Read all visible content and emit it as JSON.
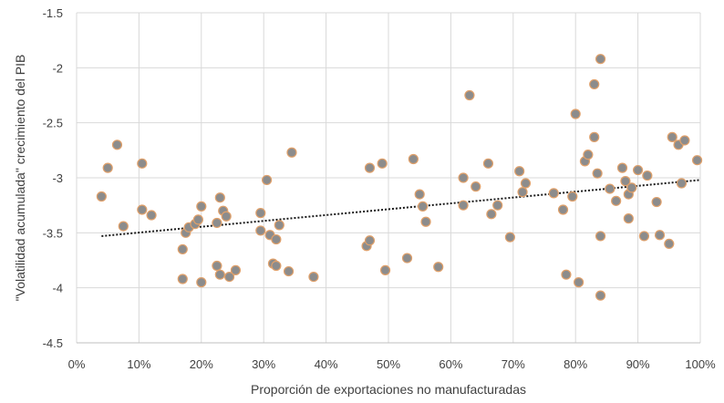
{
  "chart_data": {
    "type": "scatter",
    "title": "",
    "xlabel": "Proporción de exportaciones no manufacturadas",
    "ylabel": "\"Volatilidad acumulada\"  crecimiento del PIB",
    "xlim": [
      0,
      1
    ],
    "ylim": [
      -4.5,
      -1.5
    ],
    "x_ticks": [
      "0%",
      "10%",
      "20%",
      "30%",
      "40%",
      "50%",
      "60%",
      "70%",
      "80%",
      "90%",
      "100%"
    ],
    "y_ticks": [
      "-1.5",
      "-2",
      "-2.5",
      "-3",
      "-3.5",
      "-4",
      "-4.5"
    ],
    "grid": true,
    "legend": "none",
    "marker_fill": "#8c8c8c",
    "marker_edge": "#e0a06a",
    "trendline": {
      "style": "dotted",
      "color": "#1a1a1a",
      "x": [
        0.04,
        1.0
      ],
      "y": [
        -3.53,
        -3.02
      ]
    },
    "points": [
      {
        "x": 0.04,
        "y": -3.17
      },
      {
        "x": 0.05,
        "y": -2.91
      },
      {
        "x": 0.065,
        "y": -2.7
      },
      {
        "x": 0.075,
        "y": -3.44
      },
      {
        "x": 0.105,
        "y": -2.87
      },
      {
        "x": 0.105,
        "y": -3.29
      },
      {
        "x": 0.12,
        "y": -3.34
      },
      {
        "x": 0.17,
        "y": -3.65
      },
      {
        "x": 0.17,
        "y": -3.92
      },
      {
        "x": 0.175,
        "y": -3.5
      },
      {
        "x": 0.18,
        "y": -3.45
      },
      {
        "x": 0.19,
        "y": -3.42
      },
      {
        "x": 0.195,
        "y": -3.38
      },
      {
        "x": 0.2,
        "y": -3.26
      },
      {
        "x": 0.2,
        "y": -3.95
      },
      {
        "x": 0.225,
        "y": -3.41
      },
      {
        "x": 0.225,
        "y": -3.8
      },
      {
        "x": 0.23,
        "y": -3.18
      },
      {
        "x": 0.23,
        "y": -3.88
      },
      {
        "x": 0.235,
        "y": -3.3
      },
      {
        "x": 0.24,
        "y": -3.35
      },
      {
        "x": 0.245,
        "y": -3.9
      },
      {
        "x": 0.255,
        "y": -3.84
      },
      {
        "x": 0.295,
        "y": -3.48
      },
      {
        "x": 0.295,
        "y": -3.32
      },
      {
        "x": 0.305,
        "y": -3.02
      },
      {
        "x": 0.31,
        "y": -3.52
      },
      {
        "x": 0.315,
        "y": -3.78
      },
      {
        "x": 0.32,
        "y": -3.56
      },
      {
        "x": 0.32,
        "y": -3.8
      },
      {
        "x": 0.325,
        "y": -3.43
      },
      {
        "x": 0.34,
        "y": -3.85
      },
      {
        "x": 0.345,
        "y": -2.77
      },
      {
        "x": 0.38,
        "y": -3.9
      },
      {
        "x": 0.465,
        "y": -3.62
      },
      {
        "x": 0.47,
        "y": -3.57
      },
      {
        "x": 0.47,
        "y": -2.91
      },
      {
        "x": 0.49,
        "y": -2.87
      },
      {
        "x": 0.495,
        "y": -3.84
      },
      {
        "x": 0.53,
        "y": -3.73
      },
      {
        "x": 0.54,
        "y": -2.83
      },
      {
        "x": 0.55,
        "y": -3.15
      },
      {
        "x": 0.555,
        "y": -3.26
      },
      {
        "x": 0.56,
        "y": -3.4
      },
      {
        "x": 0.58,
        "y": -3.81
      },
      {
        "x": 0.62,
        "y": -3.0
      },
      {
        "x": 0.62,
        "y": -3.25
      },
      {
        "x": 0.63,
        "y": -2.25
      },
      {
        "x": 0.64,
        "y": -3.08
      },
      {
        "x": 0.66,
        "y": -2.87
      },
      {
        "x": 0.665,
        "y": -3.33
      },
      {
        "x": 0.675,
        "y": -3.25
      },
      {
        "x": 0.695,
        "y": -3.54
      },
      {
        "x": 0.71,
        "y": -2.94
      },
      {
        "x": 0.715,
        "y": -3.13
      },
      {
        "x": 0.72,
        "y": -3.05
      },
      {
        "x": 0.765,
        "y": -3.14
      },
      {
        "x": 0.78,
        "y": -3.29
      },
      {
        "x": 0.785,
        "y": -3.88
      },
      {
        "x": 0.795,
        "y": -3.17
      },
      {
        "x": 0.8,
        "y": -2.42
      },
      {
        "x": 0.805,
        "y": -3.95
      },
      {
        "x": 0.815,
        "y": -2.85
      },
      {
        "x": 0.82,
        "y": -2.79
      },
      {
        "x": 0.83,
        "y": -2.15
      },
      {
        "x": 0.83,
        "y": -2.63
      },
      {
        "x": 0.835,
        "y": -2.96
      },
      {
        "x": 0.84,
        "y": -1.92
      },
      {
        "x": 0.84,
        "y": -3.53
      },
      {
        "x": 0.84,
        "y": -4.07
      },
      {
        "x": 0.855,
        "y": -3.1
      },
      {
        "x": 0.865,
        "y": -3.21
      },
      {
        "x": 0.875,
        "y": -2.91
      },
      {
        "x": 0.88,
        "y": -3.03
      },
      {
        "x": 0.885,
        "y": -3.37
      },
      {
        "x": 0.885,
        "y": -3.15
      },
      {
        "x": 0.89,
        "y": -3.09
      },
      {
        "x": 0.9,
        "y": -2.93
      },
      {
        "x": 0.91,
        "y": -3.53
      },
      {
        "x": 0.915,
        "y": -2.98
      },
      {
        "x": 0.93,
        "y": -3.22
      },
      {
        "x": 0.935,
        "y": -3.52
      },
      {
        "x": 0.95,
        "y": -3.6
      },
      {
        "x": 0.955,
        "y": -2.63
      },
      {
        "x": 0.965,
        "y": -2.7
      },
      {
        "x": 0.97,
        "y": -3.05
      },
      {
        "x": 0.975,
        "y": -2.66
      },
      {
        "x": 0.995,
        "y": -2.84
      }
    ]
  }
}
